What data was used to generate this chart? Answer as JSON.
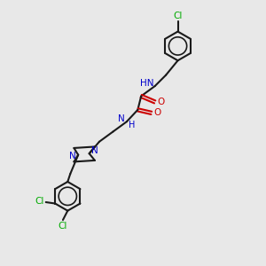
{
  "bg_color": "#e8e8e8",
  "bond_color": "#1a1a1a",
  "nitrogen_color": "#0000cc",
  "oxygen_color": "#cc0000",
  "chlorine_color": "#00aa00",
  "line_width": 1.5,
  "figsize": [
    3.0,
    3.0
  ],
  "dpi": 100,
  "xlim": [
    0,
    10
  ],
  "ylim": [
    0,
    10
  ]
}
